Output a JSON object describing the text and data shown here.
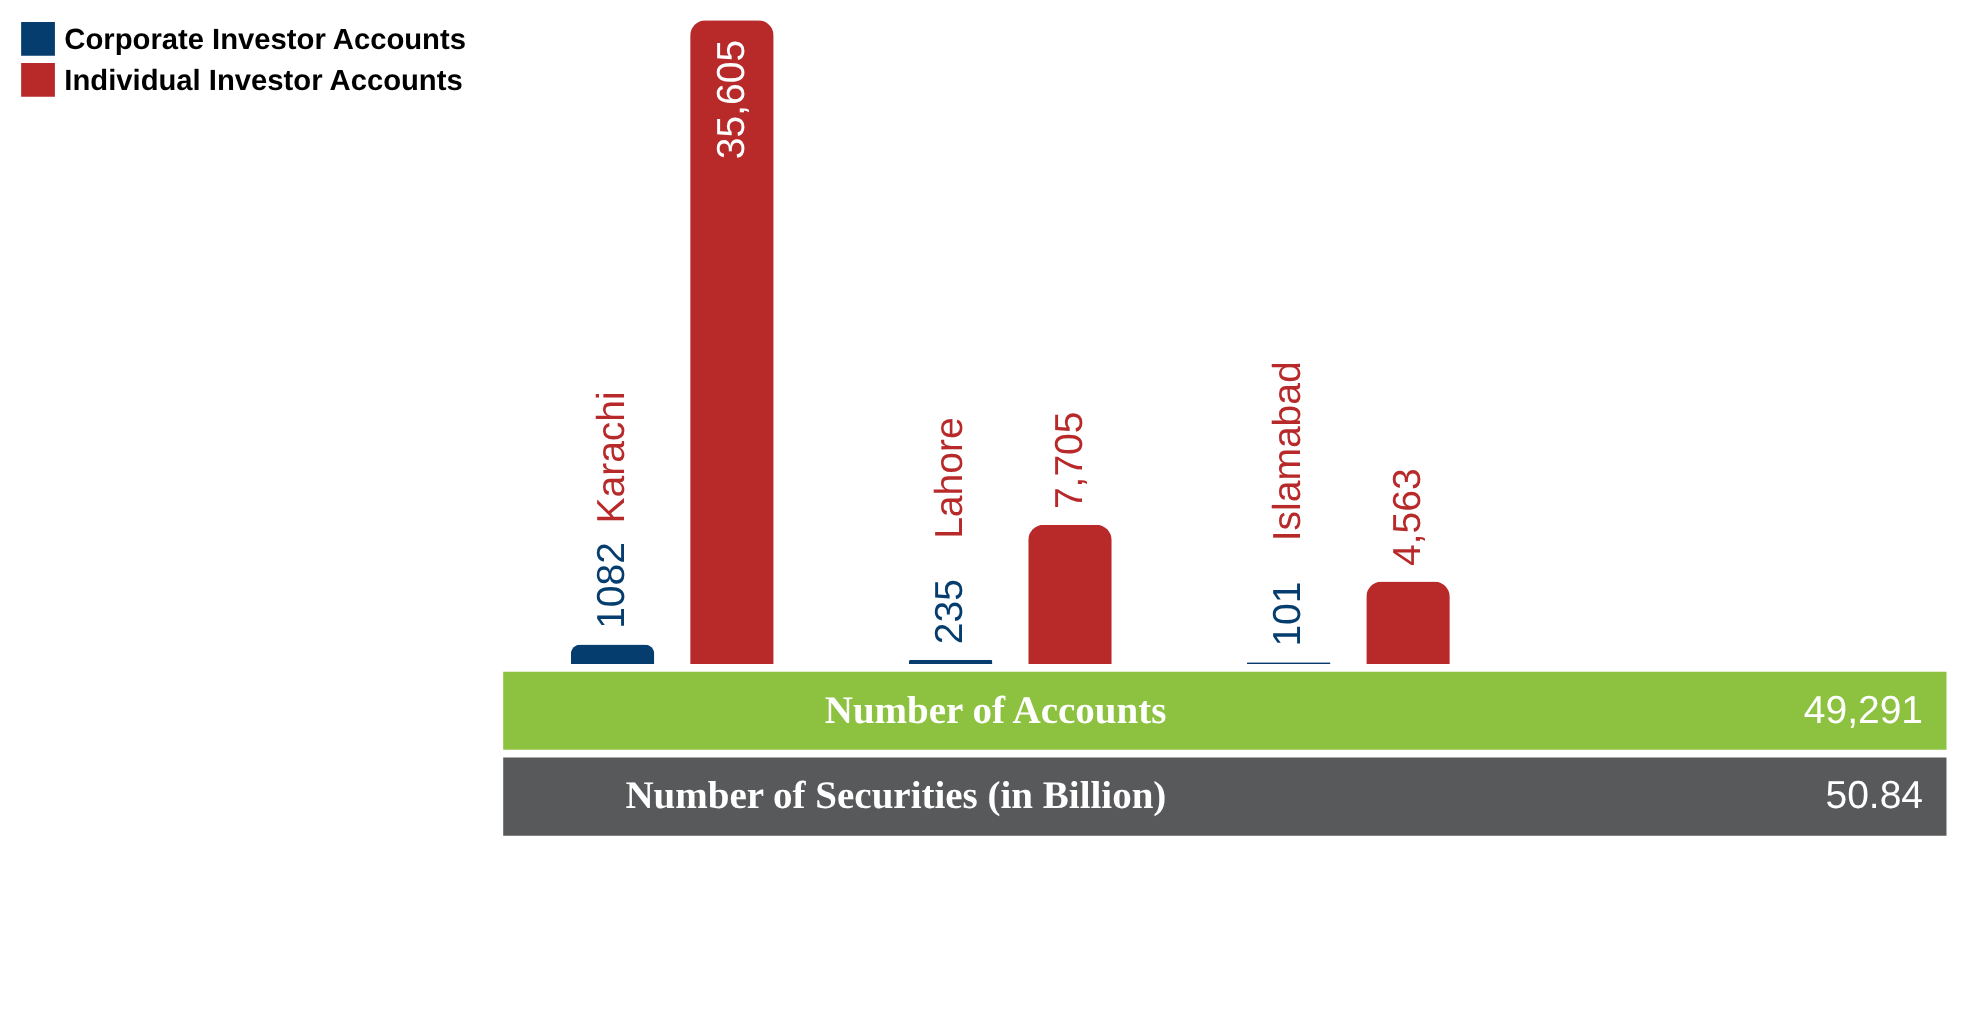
{
  "chart_data": {
    "type": "bar",
    "categories": [
      "Karachi",
      "Lahore",
      "Islamabad"
    ],
    "series": [
      {
        "name": "Corporate Investor Accounts",
        "color": "#053d6e",
        "values": [
          1082,
          235,
          101
        ],
        "value_labels": [
          "1082",
          "235",
          "101"
        ]
      },
      {
        "name": "Individual Investor Accounts",
        "color": "#b8292a",
        "values": [
          35605,
          7705,
          4563
        ],
        "value_labels": [
          "35,605",
          "7,705",
          "4,563"
        ]
      }
    ],
    "legend": "left",
    "annotations": [
      "Number of Accounts",
      "49,291",
      "Number of Securities (in Billion)",
      "50.84"
    ]
  }
}
